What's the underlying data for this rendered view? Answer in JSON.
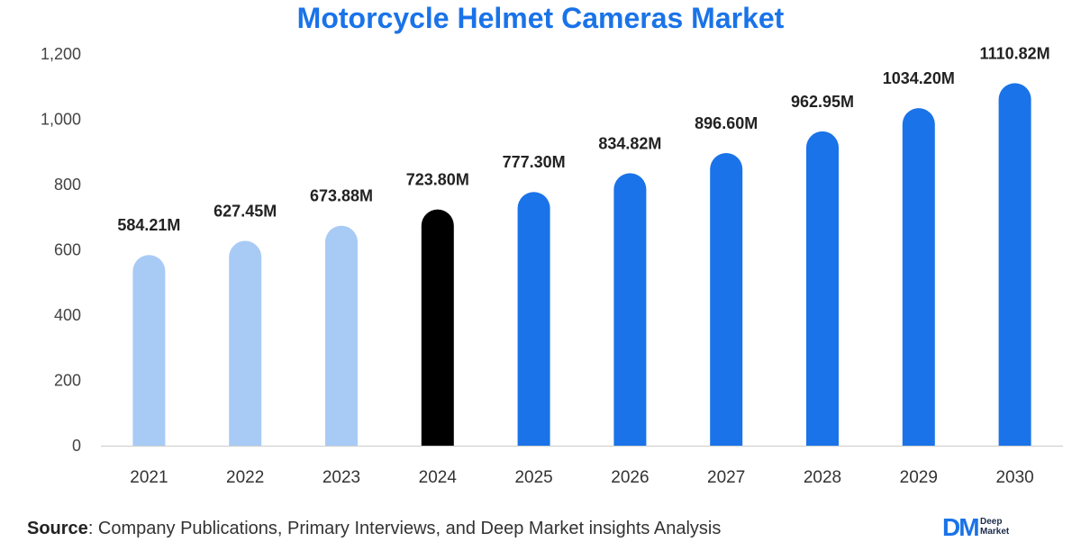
{
  "chart_data": {
    "type": "bar",
    "title": "Motorcycle Helmet Cameras Market",
    "categories": [
      "2021",
      "2022",
      "2023",
      "2024",
      "2025",
      "2026",
      "2027",
      "2028",
      "2029",
      "2030"
    ],
    "values": [
      584.21,
      627.45,
      673.88,
      723.8,
      777.3,
      834.82,
      896.6,
      962.95,
      1034.2,
      1110.82
    ],
    "data_labels": [
      "584.21M",
      "627.45M",
      "673.88M",
      "723.80M",
      "777.30M",
      "834.82M",
      "896.60M",
      "962.95M",
      "1034.20M",
      "1110.82M"
    ],
    "bar_colors": [
      "#a8cbf5",
      "#a8cbf5",
      "#a8cbf5",
      "#000000",
      "#1a73e8",
      "#1a73e8",
      "#1a73e8",
      "#1a73e8",
      "#1a73e8",
      "#1a73e8"
    ],
    "ylim": [
      0,
      1200
    ],
    "yticks": [
      0,
      200,
      400,
      600,
      800,
      1000,
      1200
    ],
    "ytick_labels": [
      "0",
      "200",
      "400",
      "600",
      "800",
      "1,000",
      "1,200"
    ],
    "grid": false,
    "xlabel": "",
    "ylabel": ""
  },
  "source": {
    "label": "Source",
    "text": ": Company Publications, Primary Interviews, and Deep Market insights Analysis"
  },
  "logo": {
    "mark": "DM",
    "line1": "Deep",
    "line2": "Market"
  },
  "colors": {
    "title": "#1a73e8",
    "historical": "#a8cbf5",
    "base_year": "#000000",
    "forecast": "#1a73e8"
  }
}
